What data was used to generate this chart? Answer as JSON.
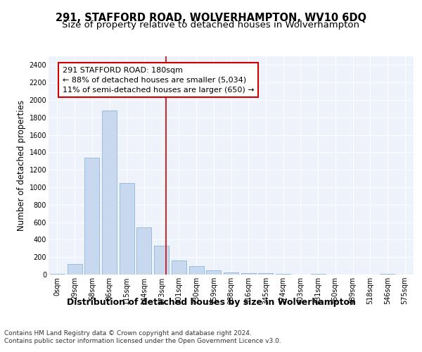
{
  "title": "291, STAFFORD ROAD, WOLVERHAMPTON, WV10 6DQ",
  "subtitle": "Size of property relative to detached houses in Wolverhampton",
  "xlabel": "Distribution of detached houses by size in Wolverhampton",
  "ylabel": "Number of detached properties",
  "categories": [
    "0sqm",
    "29sqm",
    "58sqm",
    "86sqm",
    "115sqm",
    "144sqm",
    "173sqm",
    "201sqm",
    "230sqm",
    "259sqm",
    "288sqm",
    "316sqm",
    "345sqm",
    "374sqm",
    "403sqm",
    "431sqm",
    "460sqm",
    "489sqm",
    "518sqm",
    "546sqm",
    "575sqm"
  ],
  "values": [
    10,
    120,
    1340,
    1880,
    1050,
    540,
    330,
    160,
    100,
    50,
    25,
    20,
    15,
    10,
    0,
    5,
    0,
    0,
    0,
    5,
    0
  ],
  "bar_color": "#c8d9ef",
  "bar_edge_color": "#7aadd4",
  "vline_x_index": 6.27,
  "vline_color": "#cc0000",
  "annotation_text": "291 STAFFORD ROAD: 180sqm\n← 88% of detached houses are smaller (5,034)\n11% of semi-detached houses are larger (650) →",
  "annotation_box_facecolor": "#ffffff",
  "annotation_box_edgecolor": "#cc0000",
  "ylim": [
    0,
    2500
  ],
  "yticks": [
    0,
    200,
    400,
    600,
    800,
    1000,
    1200,
    1400,
    1600,
    1800,
    2000,
    2200,
    2400
  ],
  "footer1": "Contains HM Land Registry data © Crown copyright and database right 2024.",
  "footer2": "Contains public sector information licensed under the Open Government Licence v3.0.",
  "bg_color": "#eef2fa",
  "title_fontsize": 10.5,
  "subtitle_fontsize": 9.5,
  "xlabel_fontsize": 9,
  "ylabel_fontsize": 8.5,
  "tick_fontsize": 7,
  "annot_fontsize": 8,
  "footer_fontsize": 6.5
}
